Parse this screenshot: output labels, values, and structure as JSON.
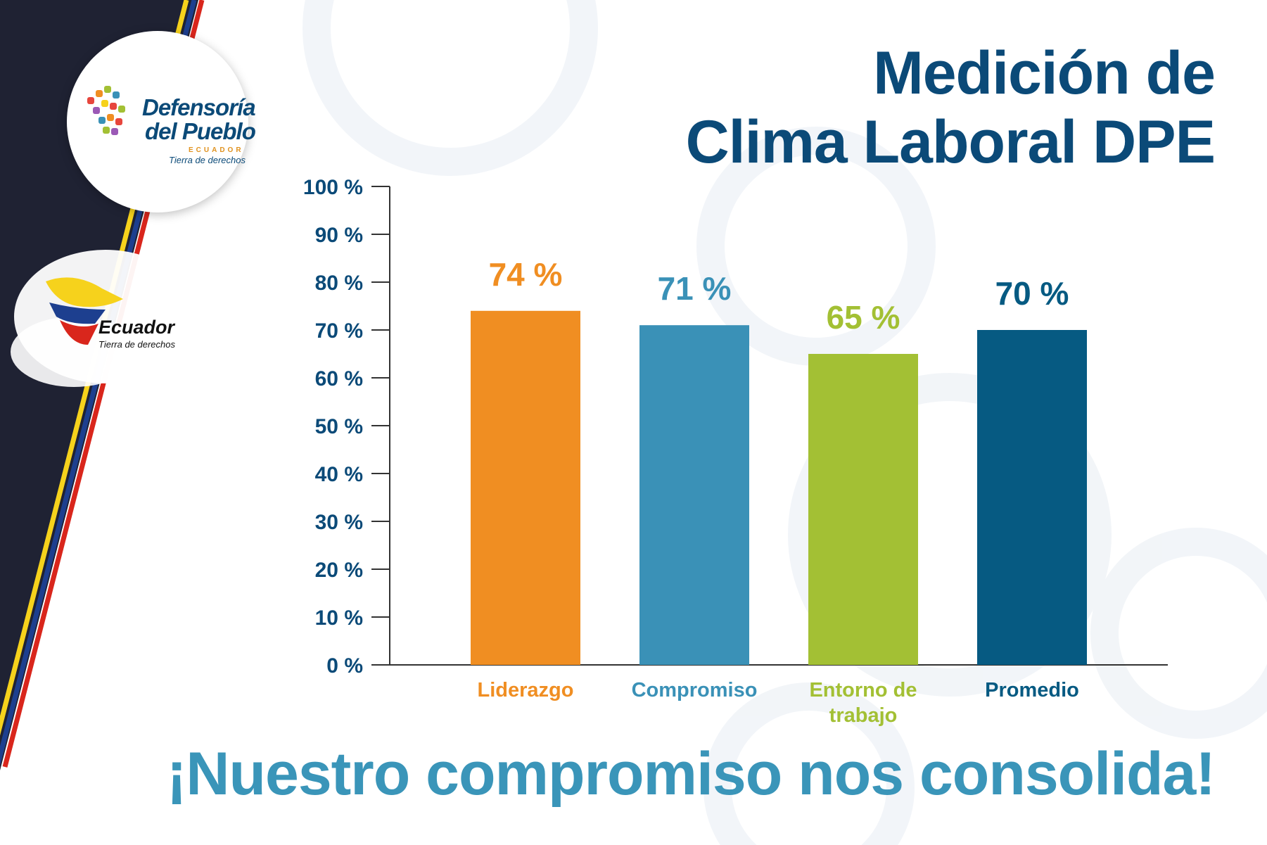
{
  "header": {
    "title_line1": "Medición de",
    "title_line2": "Clima Laboral DPE"
  },
  "logo": {
    "name_line1": "Defensoría",
    "name_line2": "del Pueblo",
    "country": "ECUADOR",
    "tagline": "Tierra de derechos"
  },
  "badge": {
    "name": "Ecuador",
    "tagline": "Tierra de derechos"
  },
  "footer": {
    "slogan": "¡Nuestro compromiso nos consolida!"
  },
  "colors": {
    "navy": "#0b4a78",
    "bar_liderazgo": "#f08e22",
    "bar_compromiso": "#3a91b7",
    "bar_entorno": "#a3c034",
    "bar_promedio": "#065a82",
    "stripe_dark": "#1f2233",
    "flag_yellow": "#f6d21c",
    "flag_blue": "#1d3f8f",
    "flag_red": "#d9261c"
  },
  "chart_data": {
    "type": "bar",
    "categories": [
      "Liderazgo",
      "Compromiso",
      "Entorno de trabajo",
      "Promedio"
    ],
    "category_lines": [
      [
        "Liderazgo"
      ],
      [
        "Compromiso"
      ],
      [
        "Entorno de",
        "trabajo"
      ],
      [
        "Promedio"
      ]
    ],
    "values": [
      74,
      71,
      65,
      70
    ],
    "data_labels": [
      "74 %",
      "71 %",
      "65 %",
      "70 %"
    ],
    "bar_colors": [
      "#f08e22",
      "#3a91b7",
      "#a3c034",
      "#065a82"
    ],
    "yticks": [
      0,
      10,
      20,
      30,
      40,
      50,
      60,
      70,
      80,
      90,
      100
    ],
    "ytick_labels": [
      "0 %",
      "10 %",
      "20 %",
      "30 %",
      "40 %",
      "50 %",
      "60 %",
      "70 %",
      "80 %",
      "90 %",
      "100 %"
    ],
    "ylim": [
      0,
      100
    ],
    "title": "",
    "xlabel": "",
    "ylabel": "",
    "grid": false,
    "legend": "none"
  }
}
